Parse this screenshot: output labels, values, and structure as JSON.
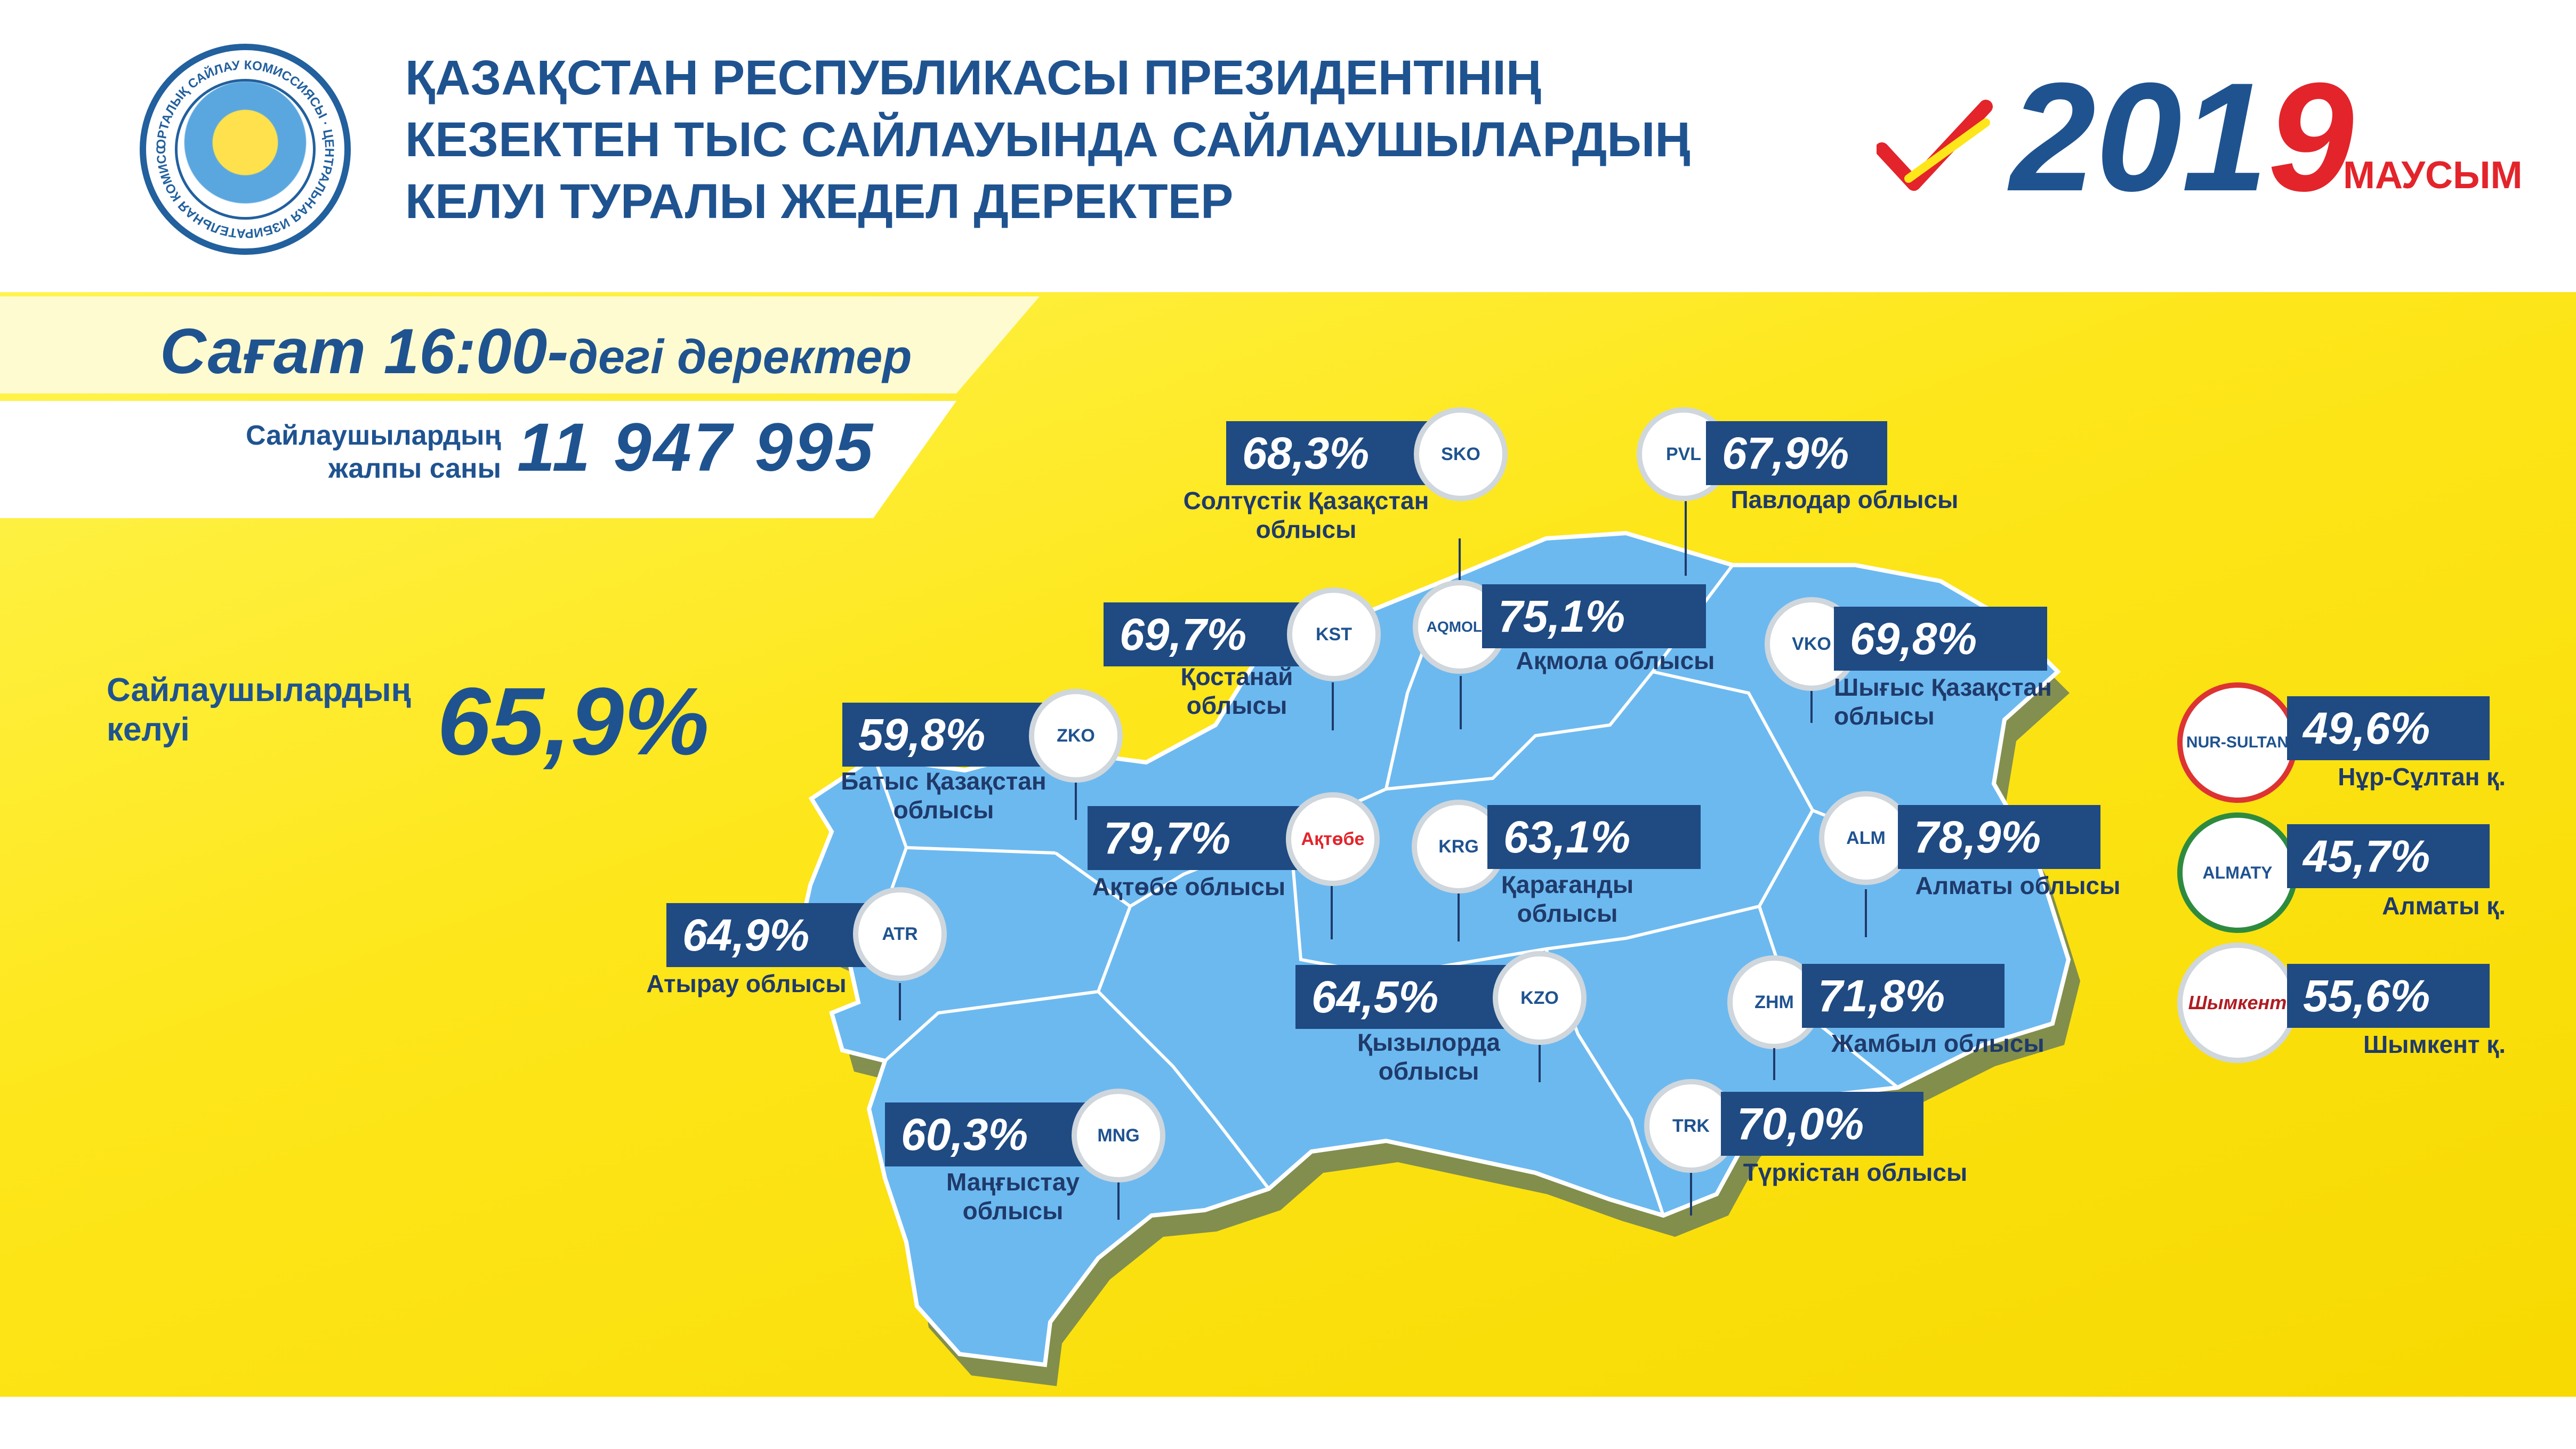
{
  "header": {
    "seal_text": "ОРТАЛЫҚ САЙЛАУ КОМИССИЯСЫ · ЦЕНТРАЛЬНАЯ ИЗБИРАТЕЛЬНАЯ КОМИССИЯ",
    "title_lines": [
      "ҚАЗАҚСТАН РЕСПУБЛИКАСЫ ПРЕЗИДЕНТІНІҢ",
      "КЕЗЕКТЕН ТЫС САЙЛАУЫНДА САЙЛАУШЫЛАРДЫҢ",
      "КЕЛУІ ТУРАЛЫ ЖЕДЕЛ ДЕРЕКТЕР"
    ],
    "year_part1": "201",
    "year_part2": "9",
    "month": "МАУСЫМ"
  },
  "summary": {
    "time_big": "Сағат 16:00-",
    "time_small": "дегі деректер",
    "voters_label_1": "Сайлаушылардың",
    "voters_label_2": "жалпы саны",
    "voters_total": "11 947 995",
    "turnout_label_1": "Сайлаушылардың",
    "turnout_label_2": "келуі",
    "turnout_value": "65,9%"
  },
  "regions": [
    {
      "pct": "68,3%",
      "name_1": "Солтүстік Қазақстан",
      "name_2": "облысы",
      "emblem": "SKO"
    },
    {
      "pct": "67,9%",
      "name_1": "Павлодар облысы",
      "name_2": "",
      "emblem": "PVL"
    },
    {
      "pct": "69,7%",
      "name_1": "Қостанай",
      "name_2": "облысы",
      "emblem": "KST"
    },
    {
      "pct": "75,1%",
      "name_1": "Ақмола облысы",
      "name_2": "",
      "emblem": "AQMOLA"
    },
    {
      "pct": "69,8%",
      "name_1": "Шығыс Қазақстан",
      "name_2": "облысы",
      "emblem": "VKO"
    },
    {
      "pct": "59,8%",
      "name_1": "Батыс Қазақстан",
      "name_2": "облысы",
      "emblem": "ZKO"
    },
    {
      "pct": "79,7%",
      "name_1": "Ақтөбе облысы",
      "name_2": "",
      "emblem": "Ақтөбе"
    },
    {
      "pct": "63,1%",
      "name_1": "Қарағанды",
      "name_2": "облысы",
      "emblem": "KRG"
    },
    {
      "pct": "78,9%",
      "name_1": "Алматы облысы",
      "name_2": "",
      "emblem": "ALM"
    },
    {
      "pct": "64,9%",
      "name_1": "Атырау облысы",
      "name_2": "",
      "emblem": "ATR"
    },
    {
      "pct": "64,5%",
      "name_1": "Қызылорда",
      "name_2": "облысы",
      "emblem": "KZO"
    },
    {
      "pct": "71,8%",
      "name_1": "Жамбыл облысы",
      "name_2": "",
      "emblem": "ZHM"
    },
    {
      "pct": "70,0%",
      "name_1": "Түркістан облысы",
      "name_2": "",
      "emblem": "TRK"
    },
    {
      "pct": "60,3%",
      "name_1": "Маңғыстау",
      "name_2": "облысы",
      "emblem": "MNG"
    }
  ],
  "cities": [
    {
      "pct": "49,6%",
      "name": "Нұр-Сұлтан қ.",
      "emblem": "NUR-SULTAN"
    },
    {
      "pct": "45,7%",
      "name": "Алматы қ.",
      "emblem": "ALMATY"
    },
    {
      "pct": "55,6%",
      "name": "Шымкент қ.",
      "emblem": "Шымкент"
    }
  ],
  "colors": {
    "navy": "#1f5390",
    "red": "#e3242b",
    "yellow": "#fde61a",
    "map": "#6cb9f0",
    "box": "#1f4a82"
  }
}
